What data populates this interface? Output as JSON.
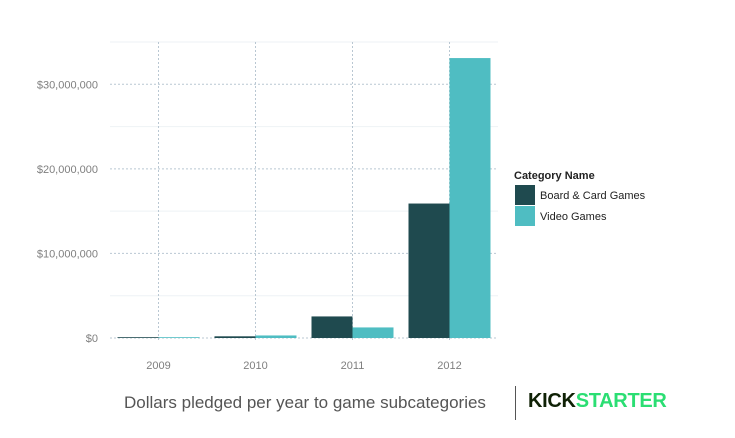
{
  "chart_data": {
    "type": "bar",
    "categories": [
      "2009",
      "2010",
      "2011",
      "2012"
    ],
    "series": [
      {
        "name": "Board & Card Games",
        "color": "#1f4a4f",
        "values": [
          20000,
          200000,
          2550000,
          15900000
        ]
      },
      {
        "name": "Video Games",
        "color": "#4fbdc2",
        "values": [
          50000,
          300000,
          1250000,
          33100000
        ]
      }
    ],
    "title": "",
    "xlabel": "",
    "ylabel": "",
    "ylim": [
      0,
      35000000
    ],
    "yticks": [
      0,
      10000000,
      20000000,
      30000000
    ],
    "ytick_labels": [
      "$0",
      "$10,000,000",
      "$20,000,000",
      "$30,000,000"
    ],
    "legend": {
      "title": "Category Name",
      "position": "right"
    },
    "grid": true
  },
  "footer": {
    "caption": "Dollars pledged per year to game subcategories",
    "brand_part1": "KICK",
    "brand_part2": "STARTER"
  }
}
